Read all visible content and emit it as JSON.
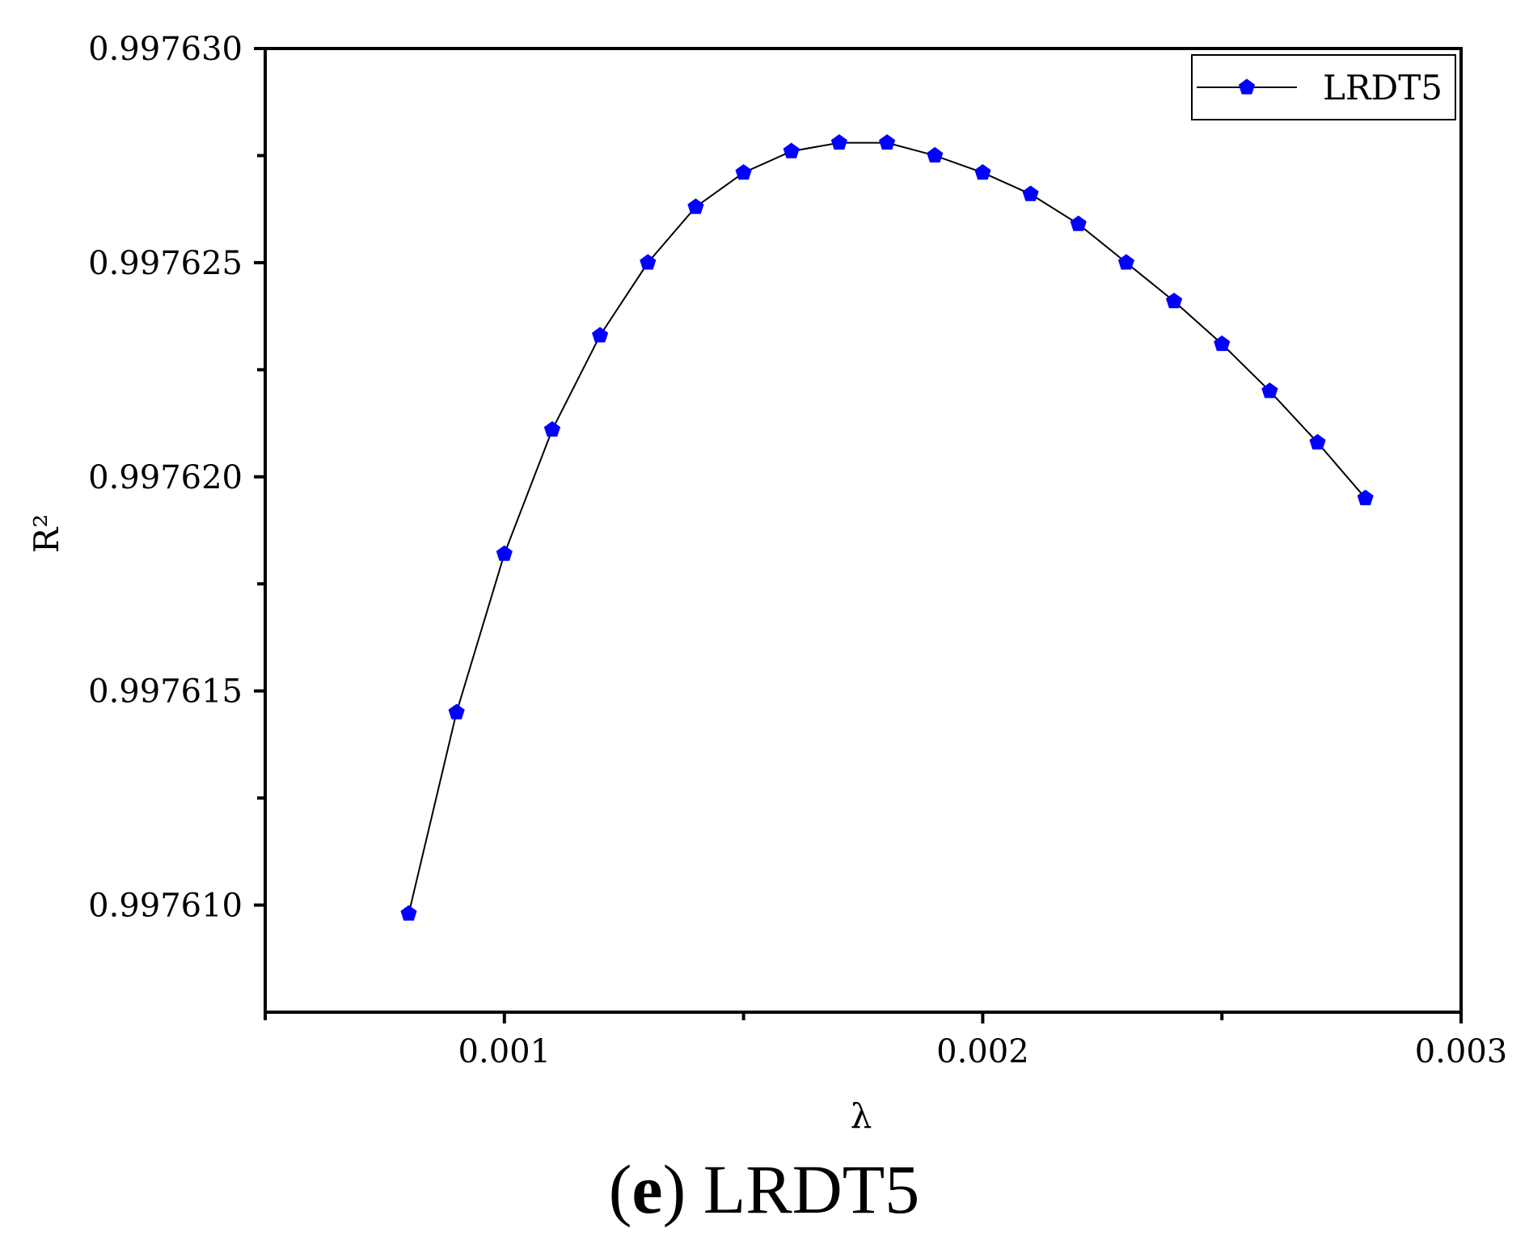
{
  "chart_data": {
    "type": "line",
    "title": "",
    "xlabel": "λ",
    "ylabel": "R²",
    "xlim": [
      0.0005,
      0.003
    ],
    "ylim": [
      0.9976075,
      0.99763
    ],
    "x_ticks": [
      0.001,
      0.002,
      0.003
    ],
    "x_tick_labels": [
      "0.001",
      "0.002",
      "0.003"
    ],
    "x_minor_ticks": [
      0.0005,
      0.0015,
      0.0025
    ],
    "y_ticks": [
      0.99761,
      0.997615,
      0.99762,
      0.997625,
      0.99763
    ],
    "y_tick_labels": [
      "0.997610",
      "0.997615",
      "0.997620",
      "0.997625",
      "0.997630"
    ],
    "y_minor_ticks": [
      0.9976125,
      0.9976175,
      0.9976225,
      0.9976275
    ],
    "grid": false,
    "legend_position": "top-right",
    "marker": "pentagon",
    "series": [
      {
        "name": "LRDT5",
        "color": "#0000ff",
        "line_color": "#000000",
        "x": [
          0.0008,
          0.0009,
          0.001,
          0.0011,
          0.0012,
          0.0013,
          0.0014,
          0.0015,
          0.0016,
          0.0017,
          0.0018,
          0.0019,
          0.002,
          0.0021,
          0.0022,
          0.0023,
          0.0024,
          0.0025,
          0.0026,
          0.0027,
          0.0028
        ],
        "values": [
          0.9976098,
          0.9976145,
          0.9976182,
          0.9976211,
          0.9976233,
          0.997625,
          0.9976263,
          0.9976271,
          0.9976276,
          0.9976278,
          0.9976278,
          0.9976275,
          0.9976271,
          0.9976266,
          0.9976259,
          0.997625,
          0.9976241,
          0.9976231,
          0.997622,
          0.9976208,
          0.9976195
        ]
      }
    ]
  },
  "caption": {
    "prefix_open": "(",
    "letter": "e",
    "suffix": ") LRDT5"
  }
}
